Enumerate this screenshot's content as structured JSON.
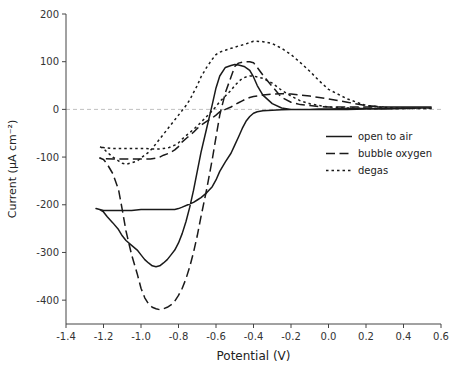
{
  "chart_data": {
    "type": "line",
    "title": "",
    "xlabel": "Potential (V)",
    "ylabel": "Current (μA cm⁻²)",
    "xlim": [
      -1.4,
      0.6
    ],
    "ylim": [
      -450,
      200
    ],
    "xticks": [
      -1.4,
      -1.2,
      {
        "value": -1.0,
        "label": "-1.0"
      },
      -0.8,
      -0.6,
      -0.4,
      -0.2,
      {
        "value": 0.0,
        "label": "0.0"
      },
      0.2,
      0.4,
      0.6
    ],
    "yticks": [
      -400,
      -300,
      -200,
      -100,
      0,
      100,
      200
    ],
    "grid": false,
    "legend": "right",
    "hline_y": 0,
    "hline_color": "#c0c0c0",
    "series": [
      {
        "name": "open to air",
        "color": "#1a1a1a",
        "line_style": "solid",
        "x": [
          0.55,
          0.5,
          0.4,
          0.3,
          0.2,
          0.1,
          0.0,
          -0.05,
          -0.1,
          -0.15,
          -0.2,
          -0.25,
          -0.3,
          -0.35,
          -0.38,
          -0.4,
          -0.42,
          -0.44,
          -0.46,
          -0.48,
          -0.5,
          -0.52,
          -0.55,
          -0.58,
          -0.6,
          -0.62,
          -0.65,
          -0.68,
          -0.7,
          -0.72,
          -0.75,
          -0.78,
          -0.8,
          -0.82,
          -0.85,
          -0.88,
          -0.9,
          -0.92,
          -0.95,
          -0.98,
          -1.0,
          -1.05,
          -1.1,
          -1.15,
          -1.2,
          -1.22,
          -1.24,
          -1.24,
          -1.22,
          -1.2,
          -1.18,
          -1.15,
          -1.12,
          -1.1,
          -1.08,
          -1.05,
          -1.02,
          -1.0,
          -0.98,
          -0.96,
          -0.94,
          -0.92,
          -0.9,
          -0.88,
          -0.86,
          -0.84,
          -0.82,
          -0.8,
          -0.78,
          -0.76,
          -0.74,
          -0.72,
          -0.7,
          -0.68,
          -0.65,
          -0.62,
          -0.6,
          -0.58,
          -0.55,
          -0.52,
          -0.5,
          -0.48,
          -0.45,
          -0.42,
          -0.4,
          -0.38,
          -0.35,
          -0.3,
          -0.25,
          -0.2,
          -0.15,
          -0.1,
          -0.05,
          0.0,
          0.1,
          0.2,
          0.3,
          0.4,
          0.5,
          0.55
        ],
        "values": [
          3,
          3,
          2,
          1,
          1,
          0,
          0,
          0,
          0,
          0,
          0,
          -1,
          -2,
          -3,
          -5,
          -8,
          -15,
          -25,
          -40,
          -58,
          -75,
          -92,
          -110,
          -130,
          -148,
          -162,
          -175,
          -185,
          -190,
          -195,
          -200,
          -205,
          -208,
          -210,
          -210,
          -210,
          -210,
          -210,
          -210,
          -210,
          -210,
          -212,
          -212,
          -212,
          -212,
          -210,
          -208,
          -208,
          -210,
          -215,
          -225,
          -238,
          -252,
          -265,
          -275,
          -285,
          -295,
          -305,
          -315,
          -322,
          -328,
          -330,
          -328,
          -322,
          -315,
          -305,
          -295,
          -280,
          -260,
          -235,
          -205,
          -170,
          -130,
          -90,
          -40,
          10,
          45,
          70,
          88,
          92,
          94,
          93,
          90,
          82,
          68,
          50,
          30,
          12,
          3,
          0,
          0,
          0,
          1,
          1,
          2,
          2,
          2,
          3,
          3,
          3
        ]
      },
      {
        "name": "bubble oxygen",
        "color": "#1a1a1a",
        "line_style": "dashed",
        "x": [
          0.55,
          0.5,
          0.4,
          0.3,
          0.2,
          0.1,
          0.0,
          -0.05,
          -0.1,
          -0.15,
          -0.2,
          -0.25,
          -0.3,
          -0.35,
          -0.38,
          -0.4,
          -0.42,
          -0.44,
          -0.46,
          -0.48,
          -0.5,
          -0.52,
          -0.55,
          -0.58,
          -0.6,
          -0.62,
          -0.65,
          -0.68,
          -0.7,
          -0.72,
          -0.75,
          -0.78,
          -0.8,
          -0.82,
          -0.85,
          -0.88,
          -0.9,
          -0.92,
          -0.95,
          -0.98,
          -1.0,
          -1.05,
          -1.1,
          -1.15,
          -1.2,
          -1.22,
          -1.22,
          -1.2,
          -1.18,
          -1.15,
          -1.12,
          -1.1,
          -1.08,
          -1.05,
          -1.02,
          -1.0,
          -0.98,
          -0.96,
          -0.94,
          -0.92,
          -0.9,
          -0.88,
          -0.86,
          -0.84,
          -0.82,
          -0.8,
          -0.78,
          -0.76,
          -0.74,
          -0.72,
          -0.7,
          -0.68,
          -0.65,
          -0.62,
          -0.6,
          -0.58,
          -0.55,
          -0.52,
          -0.5,
          -0.48,
          -0.45,
          -0.42,
          -0.4,
          -0.38,
          -0.35,
          -0.3,
          -0.25,
          -0.2,
          -0.15,
          -0.1,
          -0.05,
          0.0,
          0.1,
          0.2,
          0.3,
          0.4,
          0.5,
          0.55
        ],
        "values": [
          5,
          5,
          5,
          5,
          8,
          15,
          22,
          25,
          28,
          30,
          32,
          33,
          32,
          30,
          28,
          27,
          25,
          22,
          18,
          14,
          10,
          5,
          0,
          -5,
          -12,
          -18,
          -25,
          -33,
          -40,
          -48,
          -58,
          -68,
          -78,
          -85,
          -92,
          -96,
          -100,
          -102,
          -104,
          -104,
          -104,
          -104,
          -104,
          -104,
          -103,
          -102,
          -102,
          -105,
          -115,
          -135,
          -168,
          -210,
          -255,
          -305,
          -345,
          -375,
          -395,
          -408,
          -415,
          -418,
          -420,
          -418,
          -415,
          -410,
          -402,
          -390,
          -375,
          -355,
          -330,
          -300,
          -265,
          -225,
          -168,
          -105,
          -58,
          -12,
          35,
          68,
          90,
          97,
          100,
          100,
          98,
          88,
          72,
          48,
          25,
          15,
          10,
          8,
          6,
          5,
          5,
          5,
          5,
          5,
          5,
          5
        ]
      },
      {
        "name": "degas",
        "color": "#1a1a1a",
        "line_style": "dotted",
        "x": [
          0.55,
          0.5,
          0.4,
          0.3,
          0.2,
          0.1,
          0.0,
          -0.05,
          -0.1,
          -0.15,
          -0.2,
          -0.25,
          -0.3,
          -0.35,
          -0.38,
          -0.4,
          -0.42,
          -0.44,
          -0.46,
          -0.48,
          -0.5,
          -0.52,
          -0.55,
          -0.58,
          -0.6,
          -0.62,
          -0.65,
          -0.68,
          -0.7,
          -0.72,
          -0.75,
          -0.78,
          -0.8,
          -0.82,
          -0.85,
          -0.88,
          -0.9,
          -0.92,
          -0.95,
          -0.98,
          -1.0,
          -1.05,
          -1.1,
          -1.15,
          -1.2,
          -1.22,
          -1.22,
          -1.2,
          -1.18,
          -1.15,
          -1.12,
          -1.1,
          -1.08,
          -1.05,
          -1.02,
          -1.0,
          -0.98,
          -0.96,
          -0.94,
          -0.92,
          -0.9,
          -0.88,
          -0.86,
          -0.84,
          -0.82,
          -0.8,
          -0.78,
          -0.76,
          -0.74,
          -0.72,
          -0.7,
          -0.68,
          -0.65,
          -0.62,
          -0.6,
          -0.58,
          -0.55,
          -0.52,
          -0.5,
          -0.48,
          -0.45,
          -0.42,
          -0.4,
          -0.35,
          -0.3,
          -0.25,
          -0.2,
          -0.15,
          -0.1,
          -0.05,
          0.0,
          0.1,
          0.2,
          0.3,
          0.4,
          0.5,
          0.55
        ],
        "values": [
          2,
          2,
          2,
          2,
          2,
          3,
          5,
          8,
          12,
          18,
          28,
          40,
          55,
          65,
          68,
          70,
          70,
          68,
          65,
          58,
          50,
          40,
          28,
          16,
          6,
          -3,
          -15,
          -27,
          -35,
          -42,
          -52,
          -62,
          -70,
          -75,
          -80,
          -82,
          -83,
          -83,
          -83,
          -82,
          -82,
          -82,
          -82,
          -82,
          -80,
          -78,
          -78,
          -82,
          -90,
          -100,
          -108,
          -113,
          -115,
          -112,
          -108,
          -102,
          -96,
          -90,
          -82,
          -72,
          -62,
          -52,
          -42,
          -32,
          -22,
          -12,
          -2,
          8,
          20,
          35,
          50,
          68,
          88,
          105,
          115,
          120,
          124,
          128,
          130,
          133,
          136,
          140,
          143,
          142,
          138,
          128,
          115,
          98,
          80,
          60,
          42,
          22,
          8,
          4,
          2,
          2,
          2
        ]
      }
    ]
  }
}
